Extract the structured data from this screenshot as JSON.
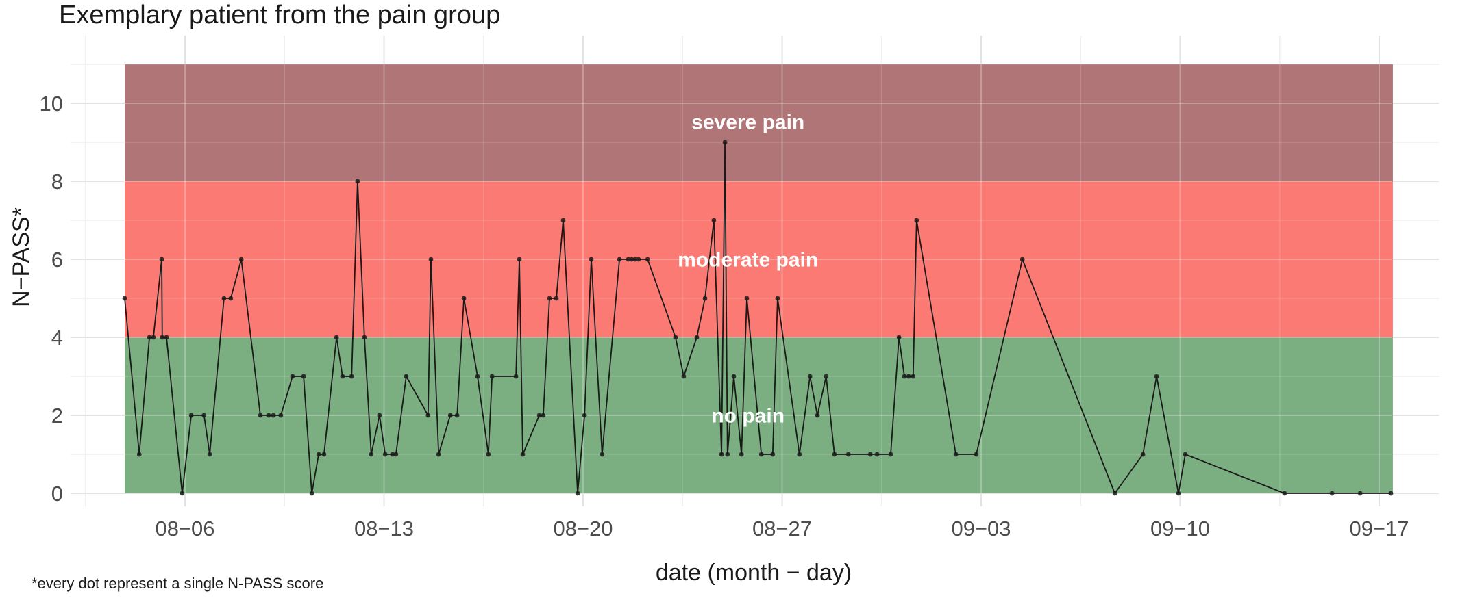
{
  "title": "Exemplary patient from the pain group",
  "footnote": "*every dot represent a single N-PASS score",
  "chart_data": {
    "type": "line",
    "title": "Exemplary patient from the pain group",
    "xlabel": "date (month − day)",
    "ylabel": "N−PASS*",
    "x_unit": "days relative to 08-06",
    "ylim": [
      0,
      11
    ],
    "grid": "on",
    "legend": "none",
    "x_domain_days": [
      -2.12,
      42.45
    ],
    "x_ticks": [
      {
        "day": 0,
        "label": "08−06"
      },
      {
        "day": 7,
        "label": "08−13"
      },
      {
        "day": 14,
        "label": "08−20"
      },
      {
        "day": 21,
        "label": "08−27"
      },
      {
        "day": 28,
        "label": "09−03"
      },
      {
        "day": 35,
        "label": "09−10"
      },
      {
        "day": 42,
        "label": "09−17"
      }
    ],
    "y_ticks": [
      {
        "value": 0,
        "label": "0"
      },
      {
        "value": 2,
        "label": "2"
      },
      {
        "value": 4,
        "label": "4"
      },
      {
        "value": 6,
        "label": "6"
      },
      {
        "value": 8,
        "label": "8"
      },
      {
        "value": 10,
        "label": "10"
      }
    ],
    "bands": [
      {
        "label": "no pain",
        "v_from": 0,
        "v_to": 4,
        "color": "#7BAE80",
        "label_v": 2.0,
        "label_day": 19.8
      },
      {
        "label": "moderate pain",
        "v_from": 4,
        "v_to": 8,
        "color": "#FB7A73",
        "label_v": 6.0,
        "label_day": 19.8
      },
      {
        "label": "severe pain",
        "v_from": 8,
        "v_to": 11,
        "color": "#B07577",
        "label_v": 9.53,
        "label_day": 19.8
      }
    ],
    "line_color": "#1a1a1a",
    "point_color": "#1a1a1a",
    "series": [
      {
        "name": "N-PASS scores",
        "points": [
          [
            -2.12,
            5
          ],
          [
            -1.61,
            1
          ],
          [
            -1.25,
            4
          ],
          [
            -1.11,
            4
          ],
          [
            -0.82,
            6
          ],
          [
            -0.8,
            4
          ],
          [
            -0.65,
            4
          ],
          [
            -0.1,
            0
          ],
          [
            0.22,
            2
          ],
          [
            0.67,
            2
          ],
          [
            0.87,
            1
          ],
          [
            1.37,
            5
          ],
          [
            1.61,
            5
          ],
          [
            1.98,
            6
          ],
          [
            2.65,
            2
          ],
          [
            2.94,
            2
          ],
          [
            3.11,
            2
          ],
          [
            3.37,
            2
          ],
          [
            3.78,
            3
          ],
          [
            4.17,
            3
          ],
          [
            4.46,
            0
          ],
          [
            4.7,
            1
          ],
          [
            4.89,
            1
          ],
          [
            5.33,
            4
          ],
          [
            5.54,
            3
          ],
          [
            5.86,
            3
          ],
          [
            6.07,
            8
          ],
          [
            6.31,
            4
          ],
          [
            6.55,
            1
          ],
          [
            6.84,
            2
          ],
          [
            7.04,
            1
          ],
          [
            7.3,
            1
          ],
          [
            7.42,
            1
          ],
          [
            7.78,
            3
          ],
          [
            8.55,
            2
          ],
          [
            8.65,
            6
          ],
          [
            8.92,
            1
          ],
          [
            9.33,
            2
          ],
          [
            9.57,
            2
          ],
          [
            9.81,
            5
          ],
          [
            10.29,
            3
          ],
          [
            10.67,
            1
          ],
          [
            10.8,
            3
          ],
          [
            11.64,
            3
          ],
          [
            11.76,
            6
          ],
          [
            11.88,
            1
          ],
          [
            12.46,
            2
          ],
          [
            12.6,
            2
          ],
          [
            12.82,
            5
          ],
          [
            13.06,
            5
          ],
          [
            13.3,
            7
          ],
          [
            13.81,
            0
          ],
          [
            14.05,
            2
          ],
          [
            14.29,
            6
          ],
          [
            14.67,
            1
          ],
          [
            15.28,
            6
          ],
          [
            15.59,
            6
          ],
          [
            15.71,
            6
          ],
          [
            15.83,
            6
          ],
          [
            15.95,
            6
          ],
          [
            16.27,
            6
          ],
          [
            17.25,
            4
          ],
          [
            17.54,
            3
          ],
          [
            18.0,
            4
          ],
          [
            18.29,
            5
          ],
          [
            18.6,
            7
          ],
          [
            18.87,
            1
          ],
          [
            18.99,
            9
          ],
          [
            19.08,
            1
          ],
          [
            19.3,
            3
          ],
          [
            19.57,
            1
          ],
          [
            19.76,
            5
          ],
          [
            20.27,
            1
          ],
          [
            20.67,
            1
          ],
          [
            20.84,
            5
          ],
          [
            21.61,
            1
          ],
          [
            21.98,
            3
          ],
          [
            22.24,
            2
          ],
          [
            22.55,
            3
          ],
          [
            22.84,
            1
          ],
          [
            23.33,
            1
          ],
          [
            24.1,
            1
          ],
          [
            24.34,
            1
          ],
          [
            24.82,
            1
          ],
          [
            25.11,
            4
          ],
          [
            25.3,
            3
          ],
          [
            25.45,
            3
          ],
          [
            25.61,
            3
          ],
          [
            25.73,
            7
          ],
          [
            27.11,
            1
          ],
          [
            27.83,
            1
          ],
          [
            29.45,
            6
          ],
          [
            32.7,
            0
          ],
          [
            33.69,
            1
          ],
          [
            34.17,
            3
          ],
          [
            34.94,
            0
          ],
          [
            35.18,
            1
          ],
          [
            38.67,
            0
          ],
          [
            40.34,
            0
          ],
          [
            41.33,
            0
          ],
          [
            42.41,
            0
          ]
        ]
      }
    ]
  }
}
